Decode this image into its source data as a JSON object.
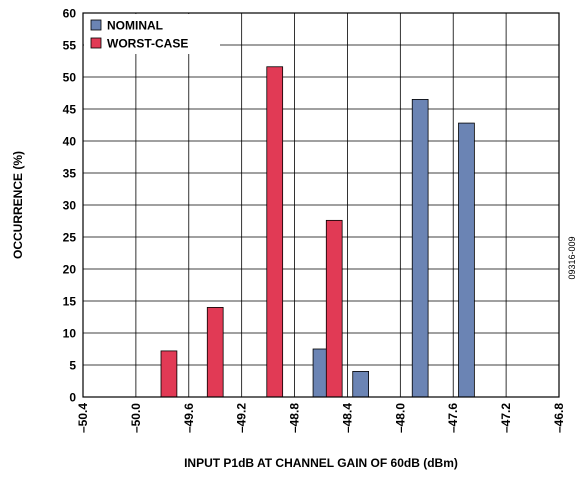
{
  "figure_id": "09316-009",
  "colors": {
    "nominal": "#6b84b4",
    "worst_case": "#e13a55",
    "grid": "#000000"
  },
  "chart_data": {
    "type": "bar",
    "xlabel": "INPUT P1dB AT CHANNEL GAIN OF 60dB (dBm)",
    "ylabel": "OCCURRENCE (%)",
    "xlim": [
      -50.4,
      -46.8
    ],
    "ylim": [
      0,
      60
    ],
    "x_ticks": [
      -50.4,
      -50.0,
      -49.6,
      -49.2,
      -48.8,
      -48.4,
      -48.0,
      -47.6,
      -47.2,
      -46.8
    ],
    "x_tick_labels": [
      "–50.4",
      "–50.0",
      "–49.6",
      "–49.2",
      "–48.8",
      "–48.4",
      "–48.0",
      "–47.6",
      "–47.2",
      "–46.8"
    ],
    "y_ticks": [
      0,
      5,
      10,
      15,
      20,
      25,
      30,
      35,
      40,
      45,
      50,
      55,
      60
    ],
    "y_tick_labels": [
      "0",
      "5",
      "10",
      "15",
      "20",
      "25",
      "30",
      "35",
      "40",
      "45",
      "50",
      "55",
      "60"
    ],
    "bar_width_data": 0.12,
    "grid": true,
    "legend_position": "top-left",
    "series": [
      {
        "name": "NOMINAL",
        "color_key": "nominal",
        "x": [
          -48.6,
          -48.3,
          -47.85,
          -47.5
        ],
        "values": [
          7.5,
          4.0,
          46.5,
          42.8
        ]
      },
      {
        "name": "WORST-CASE",
        "color_key": "worst_case",
        "x": [
          -49.75,
          -49.4,
          -48.95,
          -48.5
        ],
        "values": [
          7.2,
          14.0,
          51.6,
          27.6
        ]
      }
    ]
  }
}
